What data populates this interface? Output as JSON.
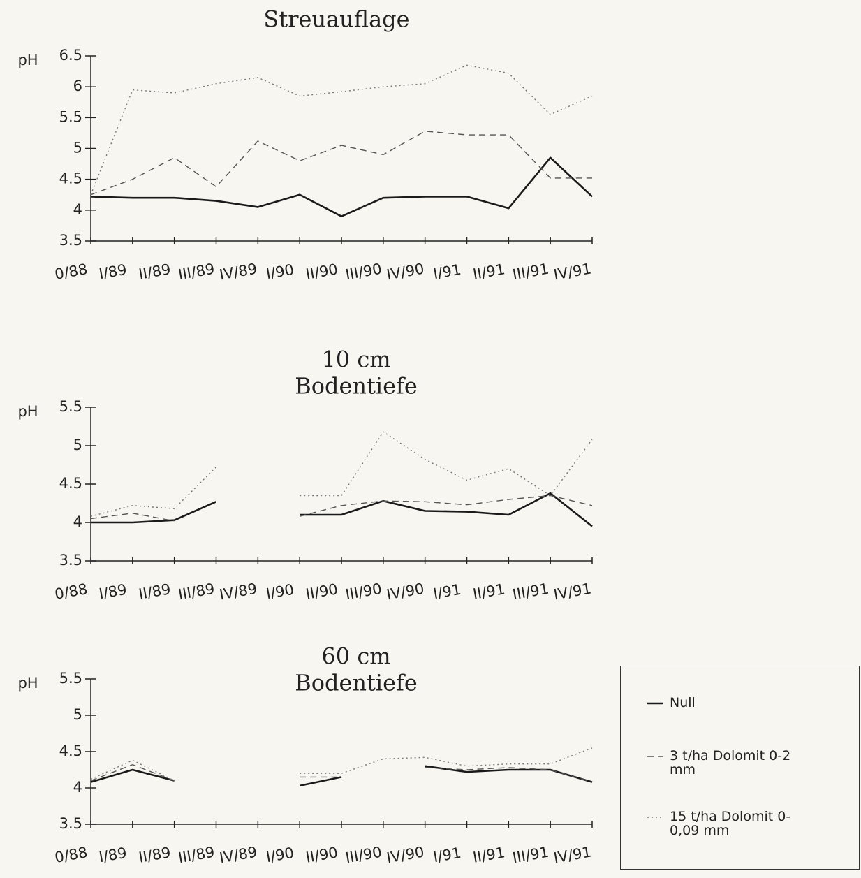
{
  "chart_data": [
    {
      "type": "line",
      "title": [
        "Streuauflage"
      ],
      "ylabel": "pH",
      "categories": [
        "0/88",
        "I/89",
        "II/89",
        "III/89",
        "IV/89",
        "I/90",
        "II/90",
        "III/90",
        "IV/90",
        "I/91",
        "II/91",
        "III/91",
        "IV/91"
      ],
      "ylim": [
        3.5,
        6.5
      ],
      "yticks": [
        3.5,
        4,
        4.5,
        5,
        5.5,
        6,
        6.5
      ],
      "series": [
        {
          "color": "#1a1a1a",
          "style": "solid",
          "values": [
            4.22,
            4.2,
            4.2,
            4.15,
            4.05,
            4.25,
            3.9,
            4.2,
            4.22,
            4.22,
            4.03,
            4.85,
            4.22
          ]
        },
        {
          "color": "#555555",
          "style": "dashed",
          "values": [
            4.25,
            4.5,
            4.85,
            4.38,
            5.12,
            4.8,
            5.05,
            4.9,
            5.28,
            5.22,
            5.22,
            4.52,
            4.52
          ]
        },
        {
          "color": "#777777",
          "style": "dotted",
          "values": [
            4.25,
            5.95,
            5.9,
            6.05,
            6.15,
            5.85,
            5.92,
            6.0,
            6.05,
            6.35,
            6.22,
            5.55,
            5.85
          ]
        }
      ]
    },
    {
      "type": "line",
      "title": [
        "10 cm",
        "Bodentiefe"
      ],
      "ylabel": "pH",
      "categories": [
        "0/88",
        "I/89",
        "II/89",
        "III/89",
        "IV/89",
        "I/90",
        "II/90",
        "III/90",
        "IV/90",
        "I/91",
        "II/91",
        "III/91",
        "IV/91"
      ],
      "ylim": [
        3.5,
        5.5
      ],
      "yticks": [
        3.5,
        4,
        4.5,
        5,
        5.5
      ],
      "series": [
        {
          "color": "#1a1a1a",
          "style": "solid",
          "values": [
            4.0,
            4.0,
            4.03,
            4.27,
            null,
            4.1,
            4.1,
            4.28,
            4.15,
            4.14,
            4.1,
            4.38,
            3.95
          ]
        },
        {
          "color": "#555555",
          "style": "dashed",
          "values": [
            4.05,
            4.12,
            4.02,
            null,
            null,
            4.08,
            4.22,
            4.28,
            4.27,
            4.23,
            4.3,
            4.35,
            4.22
          ]
        },
        {
          "color": "#777777",
          "style": "dotted",
          "values": [
            4.08,
            4.22,
            4.18,
            4.72,
            null,
            4.35,
            4.35,
            5.18,
            4.82,
            4.55,
            4.7,
            4.35,
            5.08
          ]
        }
      ]
    },
    {
      "type": "line",
      "title": [
        "60 cm",
        "Bodentiefe"
      ],
      "ylabel": "pH",
      "categories": [
        "0/88",
        "I/89",
        "II/89",
        "III/89",
        "IV/89",
        "I/90",
        "II/90",
        "III/90",
        "IV/90",
        "I/91",
        "II/91",
        "III/91",
        "IV/91"
      ],
      "ylim": [
        3.5,
        5.5
      ],
      "yticks": [
        3.5,
        4,
        4.5,
        5,
        5.5
      ],
      "series": [
        {
          "name": "Null",
          "color": "#1a1a1a",
          "style": "solid",
          "values": [
            4.08,
            4.25,
            4.1,
            null,
            null,
            4.03,
            4.15,
            null,
            4.3,
            4.22,
            4.25,
            4.25,
            4.08
          ]
        },
        {
          "name": "3 t/ha Dolomit 0-2 mm",
          "color": "#555555",
          "style": "dashed",
          "values": [
            4.1,
            4.32,
            4.1,
            null,
            null,
            4.15,
            4.15,
            null,
            4.28,
            4.25,
            4.28,
            4.25,
            4.08
          ]
        },
        {
          "name": "15 t/ha Dolomit 0-0,09 mm",
          "color": "#777777",
          "style": "dotted",
          "values": [
            4.12,
            4.38,
            4.1,
            null,
            null,
            4.2,
            4.2,
            4.4,
            4.42,
            4.3,
            4.33,
            4.33,
            4.55
          ]
        }
      ]
    }
  ]
}
